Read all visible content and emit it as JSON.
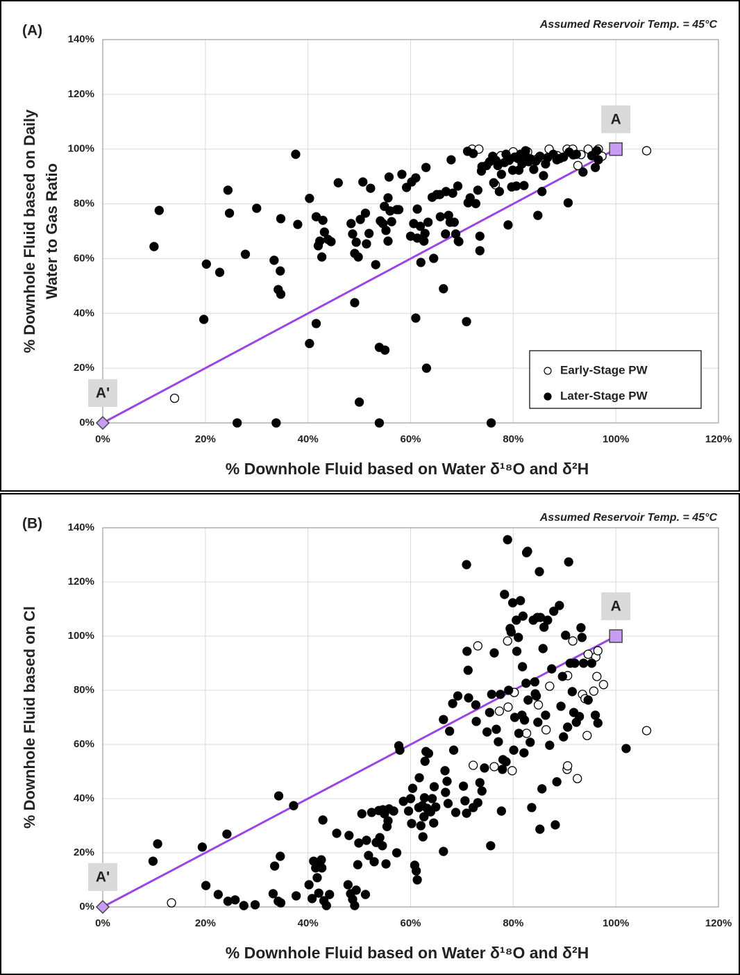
{
  "chart_data": [
    {
      "type": "scatter",
      "label": "(A)",
      "annotation": "Assumed Reservoir Temp. = 45°C",
      "xlabel": "% Downhole Fluid based on Water δ¹⁸O and δ²H",
      "ylabel": [
        "% Downhole Fluid based on Daily",
        "Water to Gas Ratio"
      ],
      "xlim": [
        0,
        120
      ],
      "ylim": [
        0,
        140
      ],
      "xticks": [
        {
          "value": 0,
          "label": "0%"
        },
        {
          "value": 20,
          "label": "20%"
        },
        {
          "value": 40,
          "label": "40%"
        },
        {
          "value": 60,
          "label": "60%"
        },
        {
          "value": 80,
          "label": "80%"
        },
        {
          "value": 100,
          "label": "100%"
        },
        {
          "value": 120,
          "label": "120%"
        }
      ],
      "yticks": [
        {
          "value": 0,
          "label": "0%"
        },
        {
          "value": 20,
          "label": "20%"
        },
        {
          "value": 40,
          "label": "40%"
        },
        {
          "value": 60,
          "label": "60%"
        },
        {
          "value": 80,
          "label": "80%"
        },
        {
          "value": 100,
          "label": "100%"
        },
        {
          "value": 120,
          "label": "120%"
        },
        {
          "value": 140,
          "label": "140%"
        }
      ],
      "grid": true,
      "legend": "lower right",
      "reference_line": {
        "x": [
          0,
          100
        ],
        "y": [
          0,
          100
        ],
        "color": "#9b45e4",
        "labels": [
          "A'",
          "A"
        ]
      },
      "series": [
        {
          "name": "Early-Stage PW",
          "color": "#000000",
          "marker": "open",
          "x": [
            14,
            72,
            73.3,
            76.5,
            77.6,
            80,
            82.8,
            87,
            90.5,
            91.6,
            92.6,
            93.2,
            94.6,
            96.6,
            96,
            97.3,
            106,
            84.8,
            88.6
          ],
          "values": [
            9,
            100,
            100,
            87,
            97.6,
            99,
            99,
            100,
            100,
            100,
            94,
            98,
            100,
            100,
            98,
            97.4,
            99.4,
            96.6,
            97.6
          ]
        },
        {
          "name": "Later-Stage PW",
          "color": "#000000",
          "marker": "filled",
          "x": [
            10,
            11,
            20.2,
            19.7,
            22.8,
            24.4,
            24.7,
            27.8,
            30,
            33.4,
            34.2,
            34.7,
            34.6,
            34.7,
            37.6,
            38,
            40.3,
            40.3,
            41.6,
            41.6,
            42,
            42.3,
            42.7,
            42.9,
            43.2,
            43.9,
            44.5,
            45.9,
            48.4,
            48.7,
            49.1,
            49.1,
            49.4,
            49.8,
            50,
            50.2,
            50.7,
            51.2,
            51.4,
            51.9,
            52.2,
            53.2,
            53.9,
            53.9,
            54.1,
            54.6,
            54.9,
            55,
            55.2,
            55.6,
            55.6,
            55.8,
            56,
            56.3,
            57.3,
            57.7,
            58.3,
            59.2,
            60,
            60.2,
            60.6,
            61,
            61,
            61.3,
            61.3,
            61.9,
            62,
            62.6,
            62.8,
            63,
            63.1,
            63.4,
            64.2,
            64.5,
            65.1,
            65.7,
            65.8,
            66.4,
            66.8,
            66.9,
            67.4,
            67.7,
            67.9,
            68.2,
            68.5,
            68.8,
            69.2,
            69.3,
            69.4,
            71.1,
            70.9,
            71.2,
            71.6,
            72.2,
            72.7,
            73.1,
            73.5,
            73.5,
            73.8,
            73.9,
            74.8,
            75.4,
            75.7,
            76,
            76.2,
            76.6,
            77,
            77.3,
            77.7,
            78.3,
            78.6,
            79,
            79.2,
            79.7,
            79.9,
            80.3,
            80.6,
            80.9,
            81.1,
            81.4,
            81.7,
            82.1,
            82.4,
            82.6,
            83,
            83.4,
            84,
            84.4,
            84.8,
            85.2,
            85.6,
            85.9,
            86.3,
            86.7,
            87.8,
            88.5,
            89.1,
            89.8,
            90.7,
            90.9,
            91.7,
            92.3,
            93.6,
            95.3,
            96,
            96.3,
            96.6,
            26.2,
            33.8
          ],
          "values": [
            64.4,
            77.6,
            58,
            37.8,
            55,
            85,
            76.6,
            61.6,
            78.4,
            59.4,
            48.7,
            47,
            55.5,
            74.6,
            98.1,
            72.5,
            82,
            29,
            36.3,
            75.3,
            64.7,
            66.4,
            60.6,
            74,
            69.7,
            67,
            66.2,
            87.7,
            72.8,
            69,
            43.9,
            61.9,
            66,
            60.6,
            7.6,
            74.3,
            88,
            76.6,
            65.4,
            69.2,
            85.7,
            57.8,
            27.6,
            0,
            73.8,
            72.8,
            79.1,
            26.6,
            70.3,
            82.2,
            66.4,
            89.8,
            77.4,
            73.5,
            77.9,
            77.9,
            90.8,
            86,
            68.2,
            88,
            72.8,
            38.3,
            89.5,
            78.1,
            67.5,
            71.8,
            58.6,
            66.4,
            69.2,
            93.3,
            20,
            73.3,
            82.4,
            60.1,
            83.4,
            83.4,
            75.3,
            49,
            69,
            84.5,
            75.8,
            73.3,
            96.1,
            83.9,
            73.3,
            69,
            86.5,
            66.4,
            66.2,
            99.2,
            37,
            80.4,
            82.2,
            98.4,
            80.1,
            85,
            68.2,
            62.9,
            92,
            93.6,
            94,
            95.4,
            0,
            97.4,
            87.7,
            95.9,
            94,
            84.5,
            90.8,
            95.1,
            98.1,
            72.3,
            95.9,
            86.2,
            92.3,
            97.1,
            86.5,
            96.6,
            92.3,
            98.1,
            94.6,
            86.7,
            99.4,
            97.1,
            95.4,
            96.4,
            92.6,
            95.6,
            75.8,
            97.4,
            84.5,
            90.3,
            94.6,
            96.9,
            98.1,
            96.1,
            96.6,
            97.1,
            80.4,
            98.9,
            97.9,
            98.1,
            91.6,
            97.6,
            93.3,
            99.4,
            96.1,
            0,
            0
          ]
        }
      ]
    },
    {
      "type": "scatter",
      "label": "(B)",
      "annotation": "Assumed Reservoir Temp. = 45°C",
      "xlabel": "% Downhole Fluid based on Water δ¹⁸O and δ²H",
      "ylabel": [
        "% Downhole Fluid based on Cl"
      ],
      "xlim": [
        0,
        120
      ],
      "ylim": [
        0,
        140
      ],
      "xticks": [
        {
          "value": 0,
          "label": "0%"
        },
        {
          "value": 20,
          "label": "20%"
        },
        {
          "value": 40,
          "label": "40%"
        },
        {
          "value": 60,
          "label": "60%"
        },
        {
          "value": 80,
          "label": "80%"
        },
        {
          "value": 100,
          "label": "100%"
        },
        {
          "value": 120,
          "label": "120%"
        }
      ],
      "yticks": [
        {
          "value": 0,
          "label": "0%"
        },
        {
          "value": 20,
          "label": "20%"
        },
        {
          "value": 40,
          "label": "40%"
        },
        {
          "value": 60,
          "label": "60%"
        },
        {
          "value": 80,
          "label": "80%"
        },
        {
          "value": 100,
          "label": "100%"
        },
        {
          "value": 120,
          "label": "120%"
        },
        {
          "value": 140,
          "label": "140%"
        }
      ],
      "grid": true,
      "reference_line": {
        "x": [
          0,
          100
        ],
        "y": [
          0,
          100
        ],
        "color": "#9b45e4",
        "labels": [
          "A'",
          "A"
        ]
      },
      "series": [
        {
          "name": "Early-Stage PW",
          "color": "#000000",
          "marker": "open",
          "x": [
            13.4,
            73.1,
            72.2,
            76.3,
            77.3,
            78.9,
            79,
            79.8,
            80.2,
            82.6,
            84.9,
            86.4,
            87.1,
            90.5,
            90.6,
            90.6,
            91.6,
            92.5,
            93.5,
            94,
            94.4,
            94.6,
            95.7,
            96.1,
            96.3,
            96.5,
            97.6,
            106
          ],
          "values": [
            1.5,
            96.4,
            52.3,
            51.8,
            72.3,
            98.2,
            73.8,
            50.3,
            79.2,
            64.1,
            74.6,
            65.4,
            81.5,
            50.8,
            52.1,
            85.4,
            98.2,
            47.4,
            78.5,
            76.9,
            63.3,
            93.3,
            79.7,
            92.3,
            85.1,
            94.6,
            82.1,
            65.1
          ]
        },
        {
          "name": "Later-Stage PW",
          "color": "#000000",
          "marker": "filled",
          "x": [
            9.8,
            10.7,
            19.4,
            20.1,
            22.5,
            24.2,
            24.4,
            25.8,
            27.5,
            29.7,
            33.2,
            33.5,
            34.2,
            34.3,
            34.6,
            34.7,
            37.2,
            37.7,
            40.2,
            40.8,
            41.1,
            41.5,
            41.8,
            42.1,
            42.3,
            42.6,
            42.7,
            42.9,
            43.1,
            43.6,
            44.2,
            45.6,
            47.8,
            48,
            48.3,
            48.7,
            49.1,
            49.4,
            49.7,
            49.9,
            50.5,
            51.2,
            51.4,
            51.8,
            52.4,
            52.9,
            53.3,
            53.8,
            54,
            54.5,
            54.6,
            54.9,
            55.2,
            55.4,
            55.6,
            55.8,
            56.7,
            57.3,
            57.7,
            57.9,
            58.6,
            59.6,
            60,
            60.2,
            60.4,
            60.8,
            61.1,
            61.3,
            61.6,
            61.7,
            62,
            62.3,
            62.4,
            62.6,
            62.7,
            62.8,
            63,
            63.2,
            63.5,
            63.9,
            64.2,
            64.5,
            64.6,
            64.9,
            66.4,
            66.4,
            66.7,
            66.8,
            67.1,
            67.3,
            67.6,
            68.2,
            68.4,
            68.8,
            69.2,
            70.3,
            70.6,
            70.9,
            70.9,
            71,
            71.2,
            71.3,
            72.2,
            72.7,
            72.8,
            73.1,
            73.5,
            73.9,
            74.4,
            74.9,
            75.4,
            75.6,
            75.8,
            76.3,
            76.7,
            77.1,
            77.5,
            77.7,
            77.9,
            78,
            78.3,
            78.6,
            78.9,
            79.1,
            79.4,
            79.6,
            79.9,
            80.1,
            80.3,
            80.6,
            80.7,
            81,
            81.1,
            81.4,
            81.7,
            81.8,
            81.9,
            82.1,
            82.2,
            82.5,
            82.6,
            82.8,
            82.9,
            83.3,
            83.6,
            83.9,
            84.2,
            84.3,
            84.5,
            84.7,
            84.8,
            85.1,
            85.2,
            85.3,
            85.6,
            85.8,
            86,
            86.3,
            86.7,
            87.1,
            87.5,
            87.9,
            88.2,
            88.5,
            89,
            89.3,
            89.6,
            89.8,
            90.2,
            90.6,
            90.8,
            91.1,
            91.5,
            91.8,
            92,
            92.3,
            92.9,
            93.2,
            93.4,
            93.7,
            94.6,
            95.3,
            96,
            96.5,
            102
          ],
          "values": [
            16.9,
            23.3,
            22.1,
            7.9,
            4.6,
            26.9,
            2.1,
            2.6,
            0.5,
            0.8,
            4.9,
            15.1,
            2.1,
            41,
            18.7,
            1.5,
            37.4,
            4.1,
            8.2,
            3.1,
            16.9,
            14.4,
            10.8,
            5.1,
            15.9,
            17.4,
            14.4,
            32.1,
            2.3,
            0.5,
            4.6,
            27.2,
            8.2,
            26.4,
            4.9,
            2.8,
            0.5,
            6.2,
            15.6,
            23.6,
            34.4,
            4.6,
            24.6,
            19,
            34.9,
            16.7,
            23.8,
            35.6,
            25.6,
            22.6,
            35.9,
            34.4,
            15.9,
            29.7,
            31.8,
            36.2,
            35.4,
            20,
            59.5,
            57.9,
            39,
            35.4,
            40,
            30.8,
            43.8,
            15.4,
            13.3,
            10,
            36.7,
            47.7,
            30,
            37.4,
            25.9,
            33.3,
            40.3,
            53.8,
            57.4,
            36.4,
            56.7,
            35.1,
            40,
            31,
            44.4,
            36.9,
            20.5,
            69.2,
            50.3,
            42.3,
            46.4,
            38.2,
            64.9,
            75.1,
            57.9,
            34.9,
            77.9,
            44.6,
            39.2,
            34.6,
            126.4,
            94.4,
            87.4,
            77.2,
            36.7,
            74.6,
            68.5,
            38.5,
            45.9,
            42.8,
            51.3,
            64.6,
            71.8,
            22.6,
            78.5,
            93.8,
            65.6,
            61,
            78.5,
            35.4,
            50.8,
            54.4,
            115.4,
            53.6,
            135.6,
            80,
            102.8,
            101.5,
            112.3,
            57.9,
            70,
            105.9,
            94.4,
            99.5,
            64.1,
            113.1,
            70.8,
            88.7,
            107.4,
            56.9,
            69,
            82.6,
            130.8,
            131.3,
            76.4,
            60.8,
            36.7,
            105.9,
            83.1,
            78.7,
            77.9,
            106.9,
            68.2,
            123.8,
            28.7,
            106.9,
            43.6,
            95.4,
            103.3,
            70.8,
            105.9,
            59.7,
            87.9,
            109.2,
            30.3,
            46.2,
            111.3,
            74.1,
            85.1,
            62.8,
            100.3,
            66.4,
            127.4,
            90,
            79.5,
            71.8,
            90,
            68.2,
            70.3,
            103.1,
            99.5,
            90,
            76.4,
            90,
            70.8,
            67.9,
            58.5
          ]
        }
      ]
    }
  ]
}
